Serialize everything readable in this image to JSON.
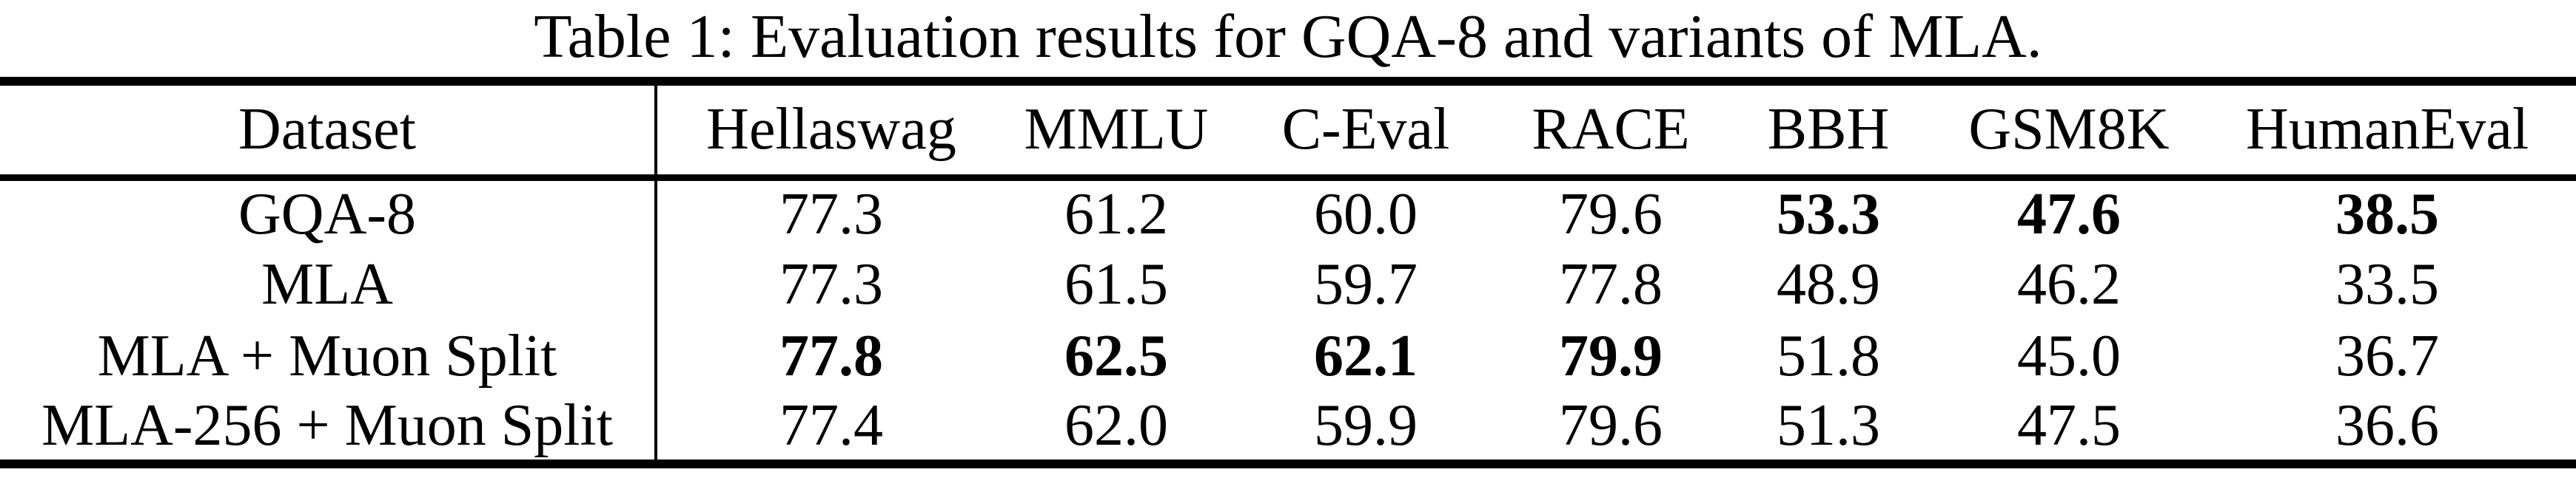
{
  "caption": "Table 1: Evaluation results for GQA-8 and variants of MLA.",
  "colors": {
    "text": "#000000",
    "background": "#ffffff",
    "rule": "#000000"
  },
  "table": {
    "columns": [
      "Dataset",
      "Hellaswag",
      "MMLU",
      "C-Eval",
      "RACE",
      "BBH",
      "GSM8K",
      "HumanEval"
    ],
    "rows": [
      {
        "label": "GQA-8",
        "cells": [
          {
            "v": "77.3",
            "b": false
          },
          {
            "v": "61.2",
            "b": false
          },
          {
            "v": "60.0",
            "b": false
          },
          {
            "v": "79.6",
            "b": false
          },
          {
            "v": "53.3",
            "b": true
          },
          {
            "v": "47.6",
            "b": true
          },
          {
            "v": "38.5",
            "b": true
          }
        ]
      },
      {
        "label": "MLA",
        "cells": [
          {
            "v": "77.3",
            "b": false
          },
          {
            "v": "61.5",
            "b": false
          },
          {
            "v": "59.7",
            "b": false
          },
          {
            "v": "77.8",
            "b": false
          },
          {
            "v": "48.9",
            "b": false
          },
          {
            "v": "46.2",
            "b": false
          },
          {
            "v": "33.5",
            "b": false
          }
        ]
      },
      {
        "label": "MLA + Muon Split",
        "cells": [
          {
            "v": "77.8",
            "b": true
          },
          {
            "v": "62.5",
            "b": true
          },
          {
            "v": "62.1",
            "b": true
          },
          {
            "v": "79.9",
            "b": true
          },
          {
            "v": "51.8",
            "b": false
          },
          {
            "v": "45.0",
            "b": false
          },
          {
            "v": "36.7",
            "b": false
          }
        ]
      },
      {
        "label": "MLA-256 + Muon Split",
        "cells": [
          {
            "v": "77.4",
            "b": false
          },
          {
            "v": "62.0",
            "b": false
          },
          {
            "v": "59.9",
            "b": false
          },
          {
            "v": "79.6",
            "b": false
          },
          {
            "v": "51.3",
            "b": false
          },
          {
            "v": "47.5",
            "b": false
          },
          {
            "v": "36.6",
            "b": false
          }
        ]
      }
    ]
  }
}
